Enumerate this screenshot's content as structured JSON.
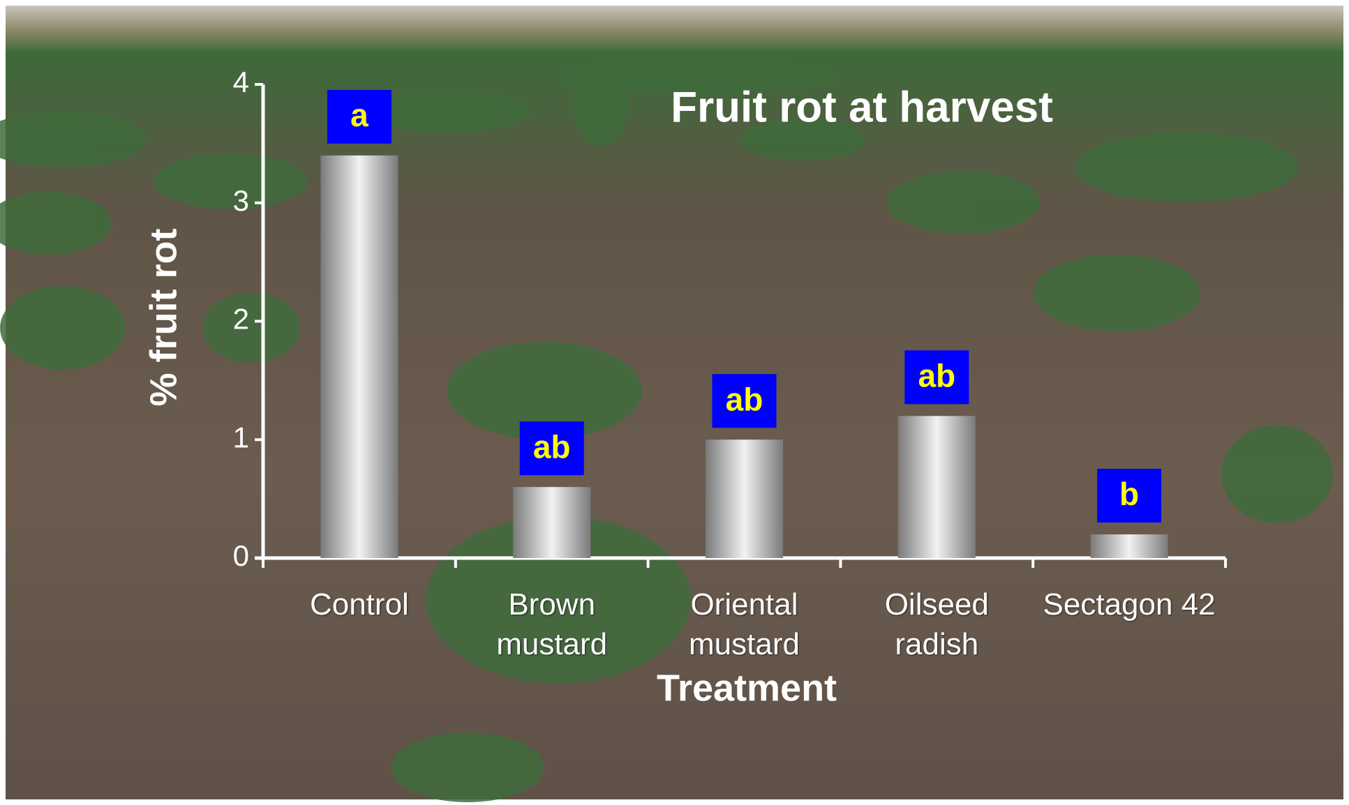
{
  "chart_data": {
    "type": "bar",
    "title": "Fruit rot at harvest",
    "xlabel": "Treatment",
    "ylabel": "% fruit rot",
    "categories": [
      "Control",
      "Brown\nmustard",
      "Oriental\nmustard",
      "Oilseed\nradish",
      "Sectagon 42"
    ],
    "values": [
      3.4,
      0.6,
      1.0,
      1.2,
      0.2
    ],
    "annotations": [
      "a",
      "ab",
      "ab",
      "ab",
      "b"
    ],
    "color": "#f2f2f2",
    "ylim": [
      0,
      4
    ],
    "yticks": [
      0,
      1,
      2,
      3,
      4
    ]
  }
}
